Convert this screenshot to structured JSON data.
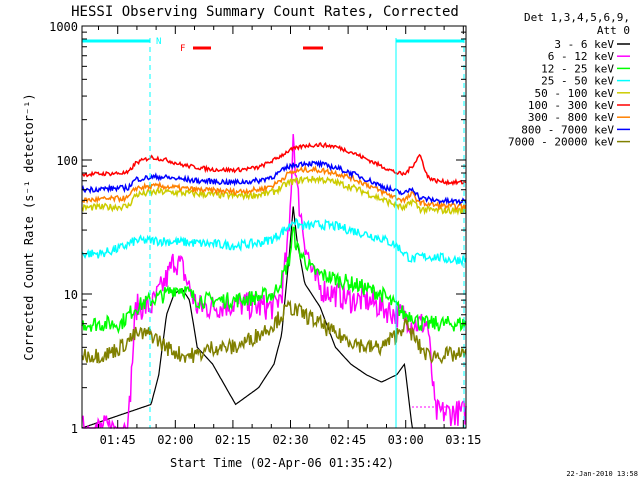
{
  "chart_data": {
    "type": "line",
    "title": "HESSI Observing Summary Count Rates, Corrected",
    "xlabel": "Start Time (02-Apr-06 01:35:42)",
    "ylabel": "Corrected Count Rate (s⁻¹ detector⁻¹)",
    "x_range_minutes": [
      0,
      100
    ],
    "xlim_label": [
      "01:35:42",
      "03:15:42"
    ],
    "y_scale": "log",
    "ylim": [
      1,
      1000
    ],
    "x_ticks": [
      {
        "label": "01:45",
        "t": 9.3
      },
      {
        "label": "02:00",
        "t": 24.3
      },
      {
        "label": "02:15",
        "t": 39.3
      },
      {
        "label": "02:30",
        "t": 54.3
      },
      {
        "label": "02:45",
        "t": 69.3
      },
      {
        "label": "03:00",
        "t": 84.3
      },
      {
        "label": "03:15",
        "t": 99.3
      }
    ],
    "y_ticks": [
      {
        "label": "1",
        "v": 1
      },
      {
        "label": "10",
        "v": 10
      },
      {
        "label": "100",
        "v": 100
      },
      {
        "label": "1000",
        "v": 1000
      }
    ],
    "legend_header": [
      "Det 1,3,4,5,6,9,",
      "Att 0"
    ],
    "legend_placement": "right",
    "series": [
      {
        "name": "3 - 6 keV",
        "color": "#000000",
        "x": [
          0,
          18,
          20,
          22,
          24,
          26,
          28,
          30,
          34,
          40,
          46,
          50,
          52,
          54,
          55,
          56,
          58,
          62,
          66,
          70,
          74,
          78,
          82,
          84,
          86,
          88,
          90,
          92,
          94,
          96,
          98,
          100
        ],
        "y": [
          1.0,
          1.5,
          2.5,
          7,
          10,
          11,
          9,
          4,
          3,
          1.5,
          2,
          3,
          5,
          20,
          45,
          25,
          12,
          8,
          4,
          3,
          2.5,
          2.2,
          2.5,
          3,
          1.0,
          1.0,
          1.0,
          1.0,
          1.0,
          1.0,
          1.0,
          1.0
        ]
      },
      {
        "name": "6 - 12 keV",
        "color": "#ff00ff",
        "x": [
          0,
          12,
          14,
          18,
          22,
          24,
          26,
          28,
          30,
          34,
          40,
          46,
          50,
          52,
          54,
          55,
          56,
          58,
          60,
          62,
          66,
          70,
          74,
          78,
          82,
          84,
          86,
          88,
          90,
          92,
          94,
          96,
          98,
          100
        ],
        "y": [
          1.0,
          1.0,
          8,
          8,
          13,
          18,
          16,
          11,
          8,
          8,
          8.5,
          8,
          8,
          10,
          30,
          160,
          60,
          25,
          14,
          11,
          10,
          9,
          9,
          8,
          7,
          7,
          6,
          6,
          6,
          1.3,
          1.3,
          1.3,
          1.3,
          1.3
        ]
      },
      {
        "name": "12 - 25 keV",
        "color": "#00ff00",
        "x": [
          0,
          10,
          14,
          18,
          22,
          24,
          26,
          28,
          30,
          34,
          40,
          46,
          50,
          52,
          54,
          55,
          56,
          58,
          60,
          62,
          66,
          70,
          74,
          78,
          82,
          84,
          86,
          88,
          90,
          92,
          94,
          96,
          98,
          100
        ],
        "y": [
          6,
          6,
          8,
          9,
          10,
          11,
          11,
          10,
          9,
          9,
          9,
          9.5,
          10,
          13,
          18,
          30,
          22,
          18,
          15,
          14,
          13,
          12,
          11,
          10,
          8,
          7,
          7,
          6,
          6,
          6,
          6,
          6,
          6,
          6
        ]
      },
      {
        "name": "25 - 50 keV",
        "color": "#00ffff",
        "x": [
          0,
          5,
          10,
          14,
          20,
          30,
          40,
          46,
          50,
          54,
          55,
          56,
          58,
          62,
          66,
          70,
          74,
          78,
          82,
          84,
          86,
          88,
          92,
          96,
          100
        ],
        "y": [
          20,
          20,
          22,
          25,
          25,
          24,
          23,
          24,
          26,
          32,
          36,
          33,
          32,
          33,
          32,
          30,
          28,
          26,
          23,
          20,
          18,
          19,
          19,
          18,
          18
        ]
      },
      {
        "name": "50 - 100 keV",
        "color": "#cccc00",
        "x": [
          0,
          12,
          14,
          20,
          30,
          40,
          46,
          50,
          54,
          58,
          62,
          66,
          70,
          74,
          78,
          82,
          84,
          86,
          88,
          92,
          96,
          100
        ],
        "y": [
          44,
          45,
          55,
          58,
          56,
          54,
          55,
          58,
          68,
          72,
          72,
          68,
          63,
          57,
          51,
          46,
          43,
          50,
          43,
          42,
          42,
          42
        ]
      },
      {
        "name": "100 - 300 keV",
        "color": "#ff0000",
        "x": [
          0,
          12,
          14,
          18,
          22,
          26,
          30,
          34,
          40,
          46,
          50,
          54,
          58,
          62,
          66,
          70,
          74,
          78,
          82,
          84,
          86,
          88,
          90,
          92,
          96,
          100
        ],
        "y": [
          78,
          80,
          95,
          105,
          100,
          92,
          88,
          85,
          84,
          88,
          100,
          118,
          128,
          130,
          126,
          115,
          102,
          90,
          80,
          78,
          90,
          110,
          75,
          70,
          68,
          68
        ]
      },
      {
        "name": "300 - 800 keV",
        "color": "#ff8000",
        "x": [
          0,
          12,
          14,
          20,
          30,
          40,
          46,
          50,
          54,
          58,
          62,
          66,
          70,
          74,
          78,
          82,
          84,
          86,
          88,
          92,
          96,
          100
        ],
        "y": [
          50,
          52,
          62,
          64,
          60,
          58,
          60,
          65,
          80,
          85,
          84,
          80,
          74,
          66,
          58,
          52,
          50,
          56,
          48,
          46,
          45,
          45
        ]
      },
      {
        "name": "800 - 7000 keV",
        "color": "#0000ff",
        "x": [
          0,
          12,
          14,
          20,
          30,
          40,
          46,
          50,
          54,
          58,
          62,
          66,
          70,
          74,
          78,
          82,
          84,
          86,
          88,
          92,
          96,
          100
        ],
        "y": [
          60,
          62,
          72,
          75,
          70,
          68,
          70,
          76,
          90,
          95,
          93,
          88,
          80,
          72,
          64,
          58,
          56,
          62,
          52,
          50,
          49,
          49
        ]
      },
      {
        "name": "7000 - 20000 keV",
        "color": "#808000",
        "x": [
          0,
          6,
          10,
          14,
          18,
          22,
          26,
          30,
          34,
          40,
          46,
          50,
          52,
          54,
          58,
          62,
          66,
          70,
          74,
          78,
          82,
          84,
          86,
          88,
          90,
          92,
          96,
          100
        ],
        "y": [
          3.5,
          3.5,
          4,
          5,
          5,
          4,
          3.5,
          3.5,
          4,
          4,
          5,
          6,
          7,
          8,
          7,
          6,
          5,
          4.5,
          4,
          4,
          5,
          6,
          5,
          4,
          3.5,
          3.5,
          3.5,
          3.5
        ]
      }
    ],
    "annotations": [
      {
        "text": "N",
        "color": "#00ffff"
      },
      {
        "text": "F",
        "color": "#ff0000"
      }
    ],
    "timestamp": "22-Jan-2010 13:58"
  }
}
